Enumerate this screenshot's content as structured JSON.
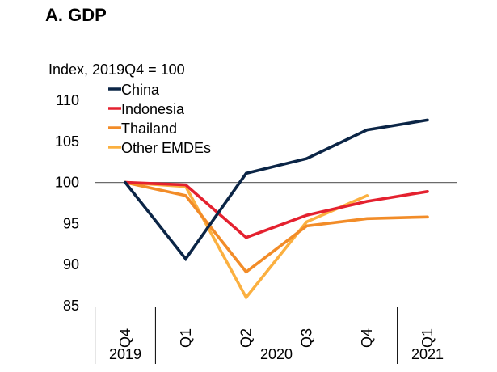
{
  "chart_data": {
    "type": "line",
    "title": "A. GDP",
    "ylabel": "Index, 2019Q4 = 100",
    "xlabel": "",
    "ylim": [
      85,
      110
    ],
    "yticks": [
      110,
      105,
      100,
      95,
      90,
      85
    ],
    "reference_line": 100,
    "grid": false,
    "legend_position": "top-left",
    "x": [
      "2019Q4",
      "2020Q1",
      "2020Q2",
      "2020Q3",
      "2020Q4",
      "2021Q1"
    ],
    "x_tick_labels": [
      "Q4",
      "Q1",
      "Q2",
      "Q3",
      "Q4",
      "Q1"
    ],
    "x_groups": [
      {
        "label": "2019",
        "span": [
          0,
          0
        ]
      },
      {
        "label": "2020",
        "span": [
          1,
          4
        ]
      },
      {
        "label": "2021",
        "span": [
          5,
          5
        ]
      }
    ],
    "series": [
      {
        "name": "China",
        "color": "#0b2546",
        "values": [
          100,
          90.7,
          101.1,
          102.9,
          106.4,
          107.6
        ]
      },
      {
        "name": "Indonesia",
        "color": "#e4212f",
        "values": [
          100,
          99.7,
          93.3,
          96.0,
          97.7,
          98.9
        ]
      },
      {
        "name": "Thailand",
        "color": "#f28c28",
        "values": [
          100,
          98.4,
          89.1,
          94.7,
          95.6,
          95.8
        ]
      },
      {
        "name": "Other EMDEs",
        "color": "#fbb040",
        "values": [
          100,
          99.5,
          86.0,
          95.2,
          98.4,
          null
        ]
      }
    ]
  }
}
